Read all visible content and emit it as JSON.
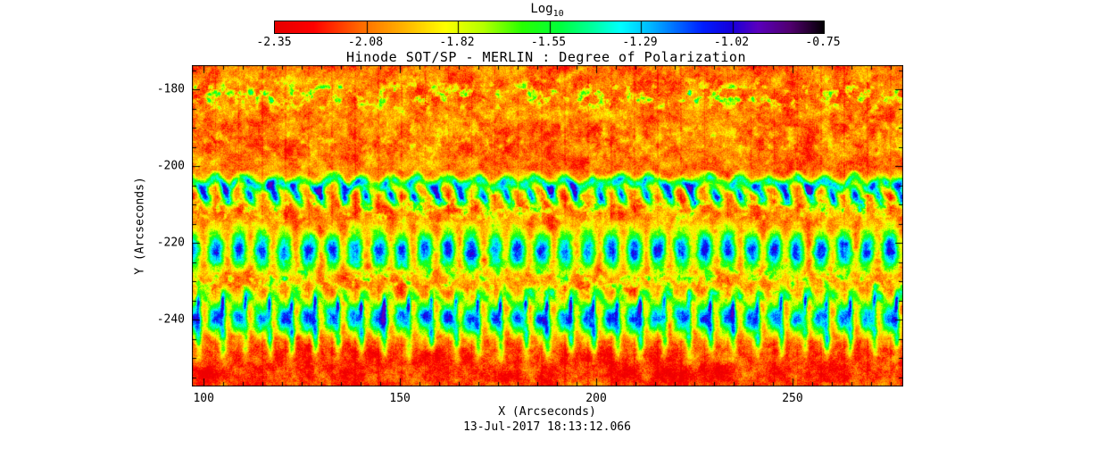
{
  "title": {
    "text": "Hinode SOT/SP - MERLIN : Degree of Polarization"
  },
  "timestamp": "13-Jul-2017 18:13:12.066",
  "colorbar": {
    "label": "Log",
    "label_subscript": "10",
    "tick_labels": [
      "-2.35",
      "-2.08",
      "-1.82",
      "-1.55",
      "-1.29",
      "-1.02",
      "-0.75"
    ],
    "tick_values": [
      -2.35,
      -2.08,
      -1.82,
      -1.55,
      -1.29,
      -1.02,
      -0.75
    ]
  },
  "x_axis": {
    "label": "X (Arcseconds)",
    "tick_labels": [
      "100",
      "150",
      "200",
      "250"
    ]
  },
  "y_axis": {
    "label": "Y (Arcseconds)",
    "tick_labels": [
      "-180",
      "-200",
      "-220",
      "-240"
    ]
  },
  "chart_data": {
    "type": "heatmap",
    "title": "Hinode SOT/SP - MERLIN : Degree of Polarization",
    "xlabel": "X (Arcseconds)",
    "ylabel": "Y (Arcseconds)",
    "date_label": "13-Jul-2017 18:13:12.066",
    "x_range": [
      97.0,
      278.2
    ],
    "y_range": [
      -257.4,
      -173.7
    ],
    "x_ticks_major": [
      100,
      150,
      200,
      250
    ],
    "y_ticks_major": [
      -180,
      -200,
      -220,
      -240
    ],
    "tick_minor_step_arcsec": 5,
    "colorbar_scale": {
      "quantity": "Log10 degree of polarization",
      "min": -2.35,
      "max": -0.75,
      "ticks": [
        -2.35,
        -2.08,
        -1.82,
        -1.55,
        -1.29,
        -1.02,
        -0.75
      ],
      "orientation": "horizontal",
      "position": "top"
    },
    "colormap_stops": [
      [
        0.0,
        230,
        0,
        0
      ],
      [
        0.07,
        255,
        0,
        0
      ],
      [
        0.16,
        255,
        110,
        0
      ],
      [
        0.24,
        255,
        185,
        0
      ],
      [
        0.31,
        255,
        255,
        0
      ],
      [
        0.38,
        180,
        255,
        0
      ],
      [
        0.45,
        40,
        255,
        0
      ],
      [
        0.52,
        0,
        255,
        60
      ],
      [
        0.58,
        0,
        255,
        160
      ],
      [
        0.63,
        0,
        255,
        255
      ],
      [
        0.68,
        0,
        190,
        255
      ],
      [
        0.73,
        0,
        110,
        255
      ],
      [
        0.78,
        0,
        30,
        255
      ],
      [
        0.83,
        20,
        0,
        220
      ],
      [
        0.88,
        90,
        0,
        190
      ],
      [
        0.94,
        80,
        0,
        110
      ],
      [
        1.0,
        5,
        0,
        5
      ]
    ],
    "column_repeat_period_arcsec": 5.93,
    "background_description": "mottled orange/yellow granulation (log10 p ~ -2.1) with deep red patches, strongest red below y = -248",
    "features": [
      {
        "mode": "speckle",
        "y": -181.5,
        "half": 2.8,
        "amp": 0.45,
        "note": "row of green speckle blobs near y=-181"
      },
      {
        "mode": "speckle",
        "y": -193.0,
        "half": 4.0,
        "amp": 0.16,
        "note": "sparse faint green dots"
      },
      {
        "mode": "wavyline",
        "y": -204.2,
        "half": 1.1,
        "amp": 0.52,
        "note": "thin wavy cyan-green line at y=-204"
      },
      {
        "mode": "blobrow",
        "y": -207.6,
        "half": 2.0,
        "amp": 0.58,
        "w": 0.16,
        "note": "periodic dark-blue comma blobs"
      },
      {
        "mode": "speckle",
        "y": -210.8,
        "half": 2.4,
        "amp": 0.34,
        "note": "green mottled band"
      },
      {
        "mode": "holeband",
        "y": -221.8,
        "half": 3.6,
        "base": 0.1,
        "edge": 0.55,
        "corew": 0.2,
        "note": "strong blue band with periodic orange cores, y=-218..-226"
      },
      {
        "mode": "speckle",
        "y": -229.5,
        "half": 3.0,
        "amp": 0.3,
        "note": "yellow-green mottling with scattered blue specks"
      },
      {
        "mode": "blobrow",
        "y": -233.5,
        "half": 1.6,
        "amp": 0.3,
        "w": 0.13,
        "note": "row of small green-blue blobs"
      },
      {
        "mode": "streaks",
        "y": -235.5,
        "half": 2.0,
        "amp": 0.45,
        "w": 0.07,
        "off": 0.28,
        "note": "narrow vertical blue streaks"
      },
      {
        "mode": "holeband",
        "y": -239.6,
        "half": 2.8,
        "base": 0.12,
        "edge": 0.5,
        "corew": 0.18,
        "note": "bright cyan-blue band with yellow cores, y=-237..-243"
      },
      {
        "mode": "streaks",
        "y": -244.8,
        "half": 3.2,
        "amp": 0.34,
        "w": 0.1,
        "off": 0.3,
        "note": "green hook-like vertical streaks below blue band"
      },
      {
        "mode": "shade",
        "y": -252.5,
        "half": 5.5,
        "amp": -0.07,
        "note": "deep red region at bottom"
      }
    ]
  }
}
